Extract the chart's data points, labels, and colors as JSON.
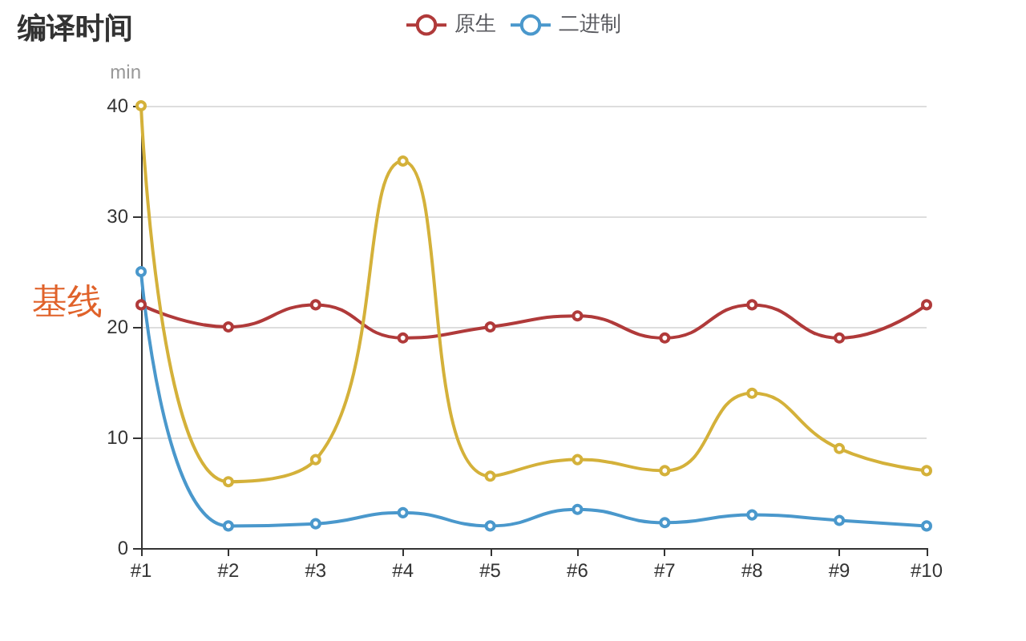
{
  "chart_data": {
    "type": "line",
    "title": "编译时间",
    "ylabel": "min",
    "categories": [
      "#1",
      "#2",
      "#3",
      "#4",
      "#5",
      "#6",
      "#7",
      "#8",
      "#9",
      "#10"
    ],
    "series": [
      {
        "name": "原生",
        "color": "#b03a3a",
        "values": [
          22,
          20,
          22,
          19,
          20,
          21,
          19,
          22,
          19,
          22
        ]
      },
      {
        "color": "#d4b13a",
        "values": [
          40,
          6,
          8,
          35,
          6.5,
          8,
          7,
          14,
          9,
          7
        ]
      },
      {
        "name": "二进制",
        "color": "#4a98cc",
        "values": [
          25,
          2,
          2.2,
          3.2,
          2,
          3.5,
          2.3,
          3,
          2.5,
          2
        ]
      }
    ],
    "ylim": [
      0,
      40
    ],
    "yticks": [
      0,
      10,
      20,
      30,
      40
    ],
    "grid": "y",
    "legend": "top",
    "marker": "circle",
    "line_style": "solid",
    "annotations": [
      "基线"
    ]
  }
}
